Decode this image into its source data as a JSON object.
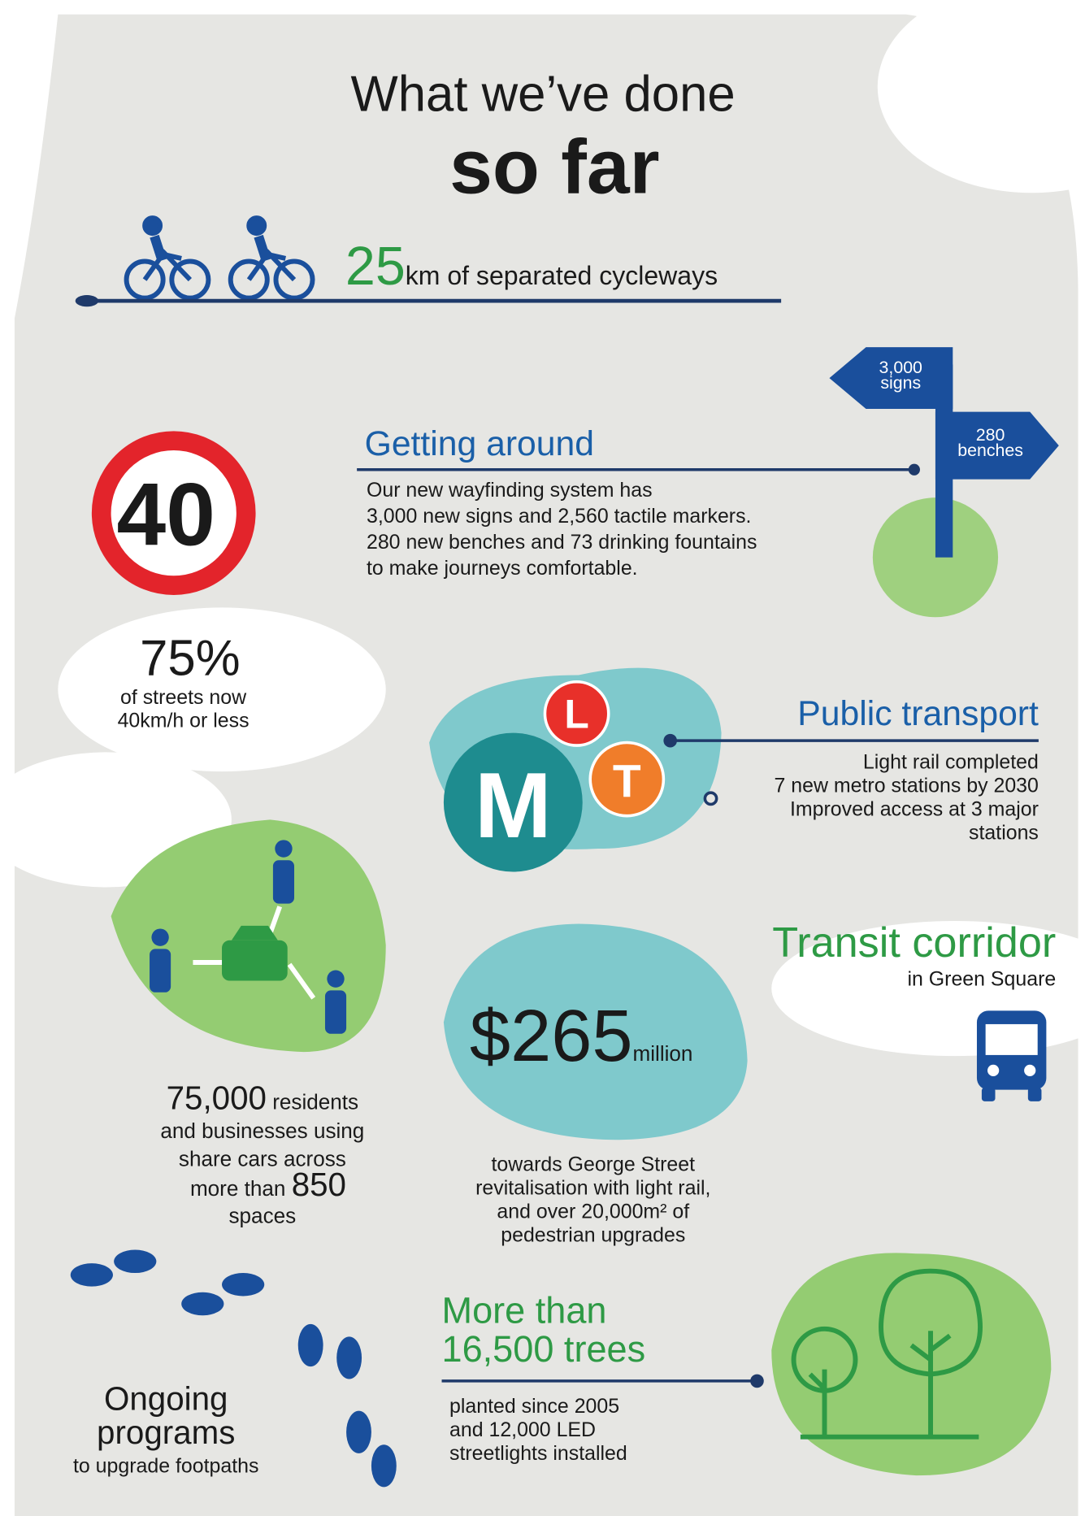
{
  "title": {
    "line1": "What we’ve done",
    "line2": "so far"
  },
  "cycleways": {
    "number": "25",
    "unit": "km of separated cycleways"
  },
  "signpost": {
    "signs": [
      "3,000",
      "signs"
    ],
    "benches": [
      "280",
      "benches"
    ]
  },
  "getting_around": {
    "heading": "Getting around",
    "body": [
      "Our new wayfinding system has",
      "3,000 new signs and 2,560 tactile markers.",
      "280 new benches and 73 drinking fountains",
      "to make journeys comfortable."
    ]
  },
  "speed": {
    "sign": "40",
    "stat": "75%",
    "caption": [
      "of streets now",
      "40km/h or less"
    ]
  },
  "public_transport": {
    "heading": "Public transport",
    "icons": [
      "L",
      "M",
      "T"
    ],
    "body": [
      "Light rail completed",
      "7 new metro stations by 2030",
      "Improved access at 3 major",
      "stations"
    ]
  },
  "share_cars": {
    "number": "75,000",
    "lines": [
      " residents",
      "and businesses using",
      "share cars across",
      "more than ",
      "spaces"
    ],
    "spaces": "850"
  },
  "transit_corridor": {
    "heading": "Transit corridor",
    "subheading": "in Green Square"
  },
  "george_street": {
    "amount": "$265",
    "unit": "million",
    "caption": [
      "towards George Street",
      "revitalisation with light rail,",
      "and over 20,000m² of",
      "pedestrian upgrades"
    ]
  },
  "trees": {
    "heading": [
      "More than",
      "16,500 trees"
    ],
    "body": [
      "planted since 2005",
      "and 12,000 LED",
      "streetlights installed"
    ]
  },
  "footpaths": {
    "heading": [
      "Ongoing",
      "programs"
    ],
    "caption": "to upgrade footpaths"
  }
}
